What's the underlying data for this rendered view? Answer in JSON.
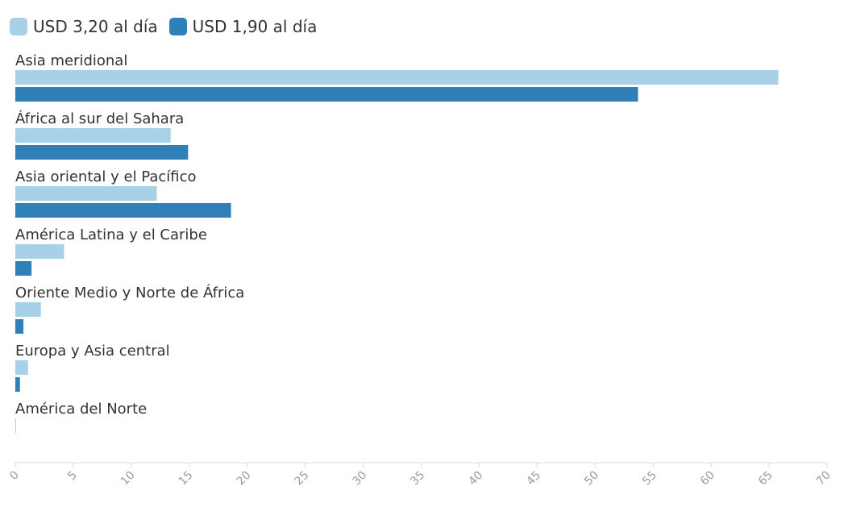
{
  "chart_data": {
    "type": "bar",
    "orientation": "horizontal",
    "categories": [
      "Asia meridional",
      "África al sur del Sahara",
      "Asia oriental y el Pacífico",
      "América Latina y el Caribe",
      "Oriente Medio y Norte de África",
      "Europa y Asia central",
      "América del Norte"
    ],
    "series": [
      {
        "name": "USD 3,20 al día",
        "color": "#a8d1e7",
        "values": [
          65.8,
          13.4,
          12.2,
          4.2,
          2.2,
          1.1,
          0.05
        ]
      },
      {
        "name": "USD 1,90 al día",
        "color": "#2f7fb8",
        "values": [
          53.7,
          14.9,
          18.6,
          1.4,
          0.7,
          0.4,
          0
        ]
      }
    ],
    "x_ticks": [
      "0",
      "5",
      "10",
      "15",
      "20",
      "25",
      "30",
      "35",
      "40",
      "45",
      "50",
      "55",
      "60",
      "65",
      "70"
    ],
    "xlim": [
      0,
      70
    ],
    "title": "",
    "xlabel": "",
    "ylabel": "",
    "legend_position": "top-left",
    "grid": false
  }
}
